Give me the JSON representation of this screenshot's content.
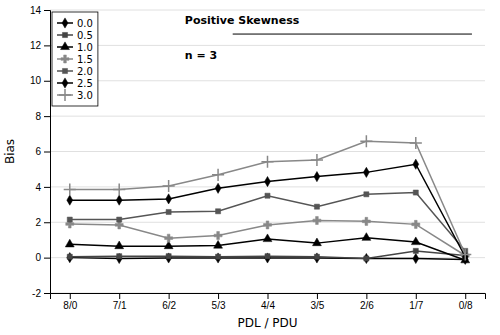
{
  "chart_data": {
    "type": "line",
    "categories": [
      "8/0",
      "7/1",
      "6/2",
      "5/3",
      "4/4",
      "3/5",
      "2/6",
      "1/7",
      "0/8"
    ],
    "x_label": "PDL / PDU",
    "y_label": "Bias",
    "annotations": [
      "Positive Skewness",
      "n = 3"
    ],
    "ylim": [
      -2,
      14
    ],
    "yticks": [
      -2,
      0,
      2,
      4,
      6,
      8,
      10,
      12,
      14
    ],
    "grid": true,
    "legend": "top-left",
    "series": [
      {
        "name": "0.0",
        "color": "#000000",
        "marker": "diamond",
        "values": [
          0.0,
          -0.05,
          -0.02,
          -0.02,
          -0.02,
          -0.02,
          -0.05,
          -0.05,
          -0.1
        ]
      },
      {
        "name": "0.5",
        "color": "#444444",
        "marker": "square",
        "values": [
          0.05,
          0.08,
          0.08,
          0.05,
          0.08,
          0.05,
          -0.05,
          0.38,
          0.12
        ]
      },
      {
        "name": "1.0",
        "color": "#000000",
        "marker": "triangle",
        "values": [
          0.75,
          0.65,
          0.65,
          0.68,
          1.05,
          0.82,
          1.12,
          0.88,
          -0.15
        ]
      },
      {
        "name": "1.5",
        "color": "#888888",
        "marker": "plus-filled",
        "values": [
          1.9,
          1.85,
          1.1,
          1.25,
          1.85,
          2.1,
          2.05,
          1.88,
          0.12
        ]
      },
      {
        "name": "2.0",
        "color": "#555555",
        "marker": "square",
        "values": [
          2.15,
          2.15,
          2.58,
          2.62,
          3.5,
          2.88,
          3.58,
          3.68,
          0.38
        ]
      },
      {
        "name": "2.5",
        "color": "#000000",
        "marker": "diamond",
        "values": [
          3.25,
          3.25,
          3.32,
          3.92,
          4.3,
          4.58,
          4.82,
          5.28,
          0.05
        ]
      },
      {
        "name": "3.0",
        "color": "#888888",
        "marker": "plus",
        "values": [
          3.85,
          3.85,
          4.05,
          4.68,
          5.42,
          5.52,
          6.58,
          6.48,
          0.18
        ]
      }
    ]
  }
}
